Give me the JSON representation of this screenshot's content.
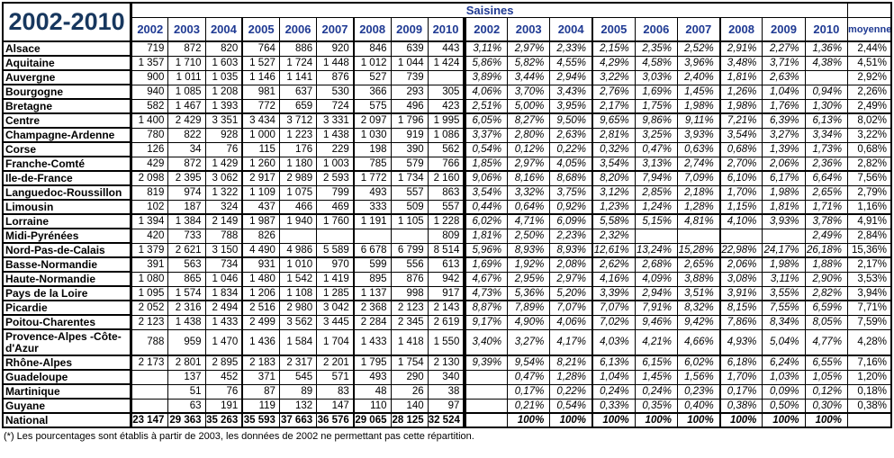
{
  "title": "2002-2010",
  "footnote": "(*) Les pourcentages sont établis à partir de 2003, les données de 2002 ne permettant pas cette répartition.",
  "colors": {
    "header_blue": "#1f3a93",
    "title_blue": "#17375e"
  },
  "table": {
    "group_header": "Saisines",
    "moyenne_label": "moyenne",
    "count_years": [
      "2002",
      "2003",
      "2004",
      "2005",
      "2006",
      "2007",
      "2008",
      "2009",
      "2010"
    ],
    "pct_years": [
      "2002",
      "2003",
      "2004",
      "2005",
      "2006",
      "2007",
      "2008",
      "2009",
      "2010"
    ],
    "rows": [
      {
        "name": "Alsace",
        "counts": [
          "719",
          "872",
          "820",
          "764",
          "886",
          "920",
          "846",
          "639",
          "443"
        ],
        "pcts": [
          "3,11%",
          "2,97%",
          "2,33%",
          "2,15%",
          "2,35%",
          "2,52%",
          "2,91%",
          "2,27%",
          "1,36%"
        ],
        "moyenne": "2,44%",
        "group_end": false,
        "bold": false,
        "tall": false
      },
      {
        "name": "Aquitaine",
        "counts": [
          "1 357",
          "1 710",
          "1 603",
          "1 527",
          "1 724",
          "1 448",
          "1 012",
          "1 044",
          "1 424"
        ],
        "pcts": [
          "5,86%",
          "5,82%",
          "4,55%",
          "4,29%",
          "4,58%",
          "3,96%",
          "3,48%",
          "3,71%",
          "4,38%"
        ],
        "moyenne": "4,51%",
        "group_end": false,
        "bold": false,
        "tall": false
      },
      {
        "name": "Auvergne",
        "counts": [
          "900",
          "1 011",
          "1 035",
          "1 146",
          "1 141",
          "876",
          "527",
          "739",
          ""
        ],
        "pcts": [
          "3,89%",
          "3,44%",
          "2,94%",
          "3,22%",
          "3,03%",
          "2,40%",
          "1,81%",
          "2,63%",
          ""
        ],
        "moyenne": "2,92%",
        "group_end": false,
        "bold": false,
        "tall": false
      },
      {
        "name": "Bourgogne",
        "counts": [
          "940",
          "1 085",
          "1 208",
          "981",
          "637",
          "530",
          "366",
          "293",
          "305"
        ],
        "pcts": [
          "4,06%",
          "3,70%",
          "3,43%",
          "2,76%",
          "1,69%",
          "1,45%",
          "1,26%",
          "1,04%",
          "0,94%"
        ],
        "moyenne": "2,26%",
        "group_end": false,
        "bold": false,
        "tall": false
      },
      {
        "name": "Bretagne",
        "counts": [
          "582",
          "1 467",
          "1 393",
          "772",
          "659",
          "724",
          "575",
          "496",
          "423"
        ],
        "pcts": [
          "2,51%",
          "5,00%",
          "3,95%",
          "2,17%",
          "1,75%",
          "1,98%",
          "1,98%",
          "1,76%",
          "1,30%"
        ],
        "moyenne": "2,49%",
        "group_end": true,
        "bold": false,
        "tall": false
      },
      {
        "name": "Centre",
        "counts": [
          "1 400",
          "2 429",
          "3 351",
          "3 434",
          "3 712",
          "3 331",
          "2 097",
          "1 796",
          "1 995"
        ],
        "pcts": [
          "6,05%",
          "8,27%",
          "9,50%",
          "9,65%",
          "9,86%",
          "9,11%",
          "7,21%",
          "6,39%",
          "6,13%"
        ],
        "moyenne": "8,02%",
        "group_end": false,
        "bold": false,
        "tall": false
      },
      {
        "name": "Champagne-Ardenne",
        "counts": [
          "780",
          "822",
          "928",
          "1 000",
          "1 223",
          "1 438",
          "1 030",
          "919",
          "1 086"
        ],
        "pcts": [
          "3,37%",
          "2,80%",
          "2,63%",
          "2,81%",
          "3,25%",
          "3,93%",
          "3,54%",
          "3,27%",
          "3,34%"
        ],
        "moyenne": "3,22%",
        "group_end": false,
        "bold": false,
        "tall": false
      },
      {
        "name": "Corse",
        "counts": [
          "126",
          "34",
          "76",
          "115",
          "176",
          "229",
          "198",
          "390",
          "562"
        ],
        "pcts": [
          "0,54%",
          "0,12%",
          "0,22%",
          "0,32%",
          "0,47%",
          "0,63%",
          "0,68%",
          "1,39%",
          "1,73%"
        ],
        "moyenne": "0,68%",
        "group_end": false,
        "bold": false,
        "tall": false
      },
      {
        "name": "Franche-Comté",
        "counts": [
          "429",
          "872",
          "1 429",
          "1 260",
          "1 180",
          "1 003",
          "785",
          "579",
          "766"
        ],
        "pcts": [
          "1,85%",
          "2,97%",
          "4,05%",
          "3,54%",
          "3,13%",
          "2,74%",
          "2,70%",
          "2,06%",
          "2,36%"
        ],
        "moyenne": "2,82%",
        "group_end": true,
        "bold": false,
        "tall": false
      },
      {
        "name": "Ile-de-France",
        "counts": [
          "2 098",
          "2 395",
          "3 062",
          "2 917",
          "2 989",
          "2 593",
          "1 772",
          "1 734",
          "2 160"
        ],
        "pcts": [
          "9,06%",
          "8,16%",
          "8,68%",
          "8,20%",
          "7,94%",
          "7,09%",
          "6,10%",
          "6,17%",
          "6,64%"
        ],
        "moyenne": "7,56%",
        "group_end": false,
        "bold": false,
        "tall": false
      },
      {
        "name": "Languedoc-Roussillon",
        "counts": [
          "819",
          "974",
          "1 322",
          "1 109",
          "1 075",
          "799",
          "493",
          "557",
          "863"
        ],
        "pcts": [
          "3,54%",
          "3,32%",
          "3,75%",
          "3,12%",
          "2,85%",
          "2,18%",
          "1,70%",
          "1,98%",
          "2,65%"
        ],
        "moyenne": "2,79%",
        "group_end": false,
        "bold": false,
        "tall": false
      },
      {
        "name": "Limousin",
        "counts": [
          "102",
          "187",
          "324",
          "437",
          "466",
          "469",
          "333",
          "509",
          "557"
        ],
        "pcts": [
          "0,44%",
          "0,64%",
          "0,92%",
          "1,23%",
          "1,24%",
          "1,28%",
          "1,15%",
          "1,81%",
          "1,71%"
        ],
        "moyenne": "1,16%",
        "group_end": true,
        "bold": false,
        "tall": false
      },
      {
        "name": "Lorraine",
        "counts": [
          "1 394",
          "1 384",
          "2 149",
          "1 987",
          "1 940",
          "1 760",
          "1 191",
          "1 105",
          "1 228"
        ],
        "pcts": [
          "6,02%",
          "4,71%",
          "6,09%",
          "5,58%",
          "5,15%",
          "4,81%",
          "4,10%",
          "3,93%",
          "3,78%"
        ],
        "moyenne": "4,91%",
        "group_end": false,
        "bold": false,
        "tall": false
      },
      {
        "name": "Midi-Pyrénées",
        "counts": [
          "420",
          "733",
          "788",
          "826",
          "",
          "",
          "",
          "",
          "809"
        ],
        "pcts": [
          "1,81%",
          "2,50%",
          "2,23%",
          "2,32%",
          "",
          "",
          "",
          "",
          "2,49%"
        ],
        "moyenne": "2,84%",
        "group_end": false,
        "bold": false,
        "tall": false
      },
      {
        "name": "Nord-Pas-de-Calais",
        "counts": [
          "1 379",
          "2 621",
          "3 150",
          "4 490",
          "4 986",
          "5 589",
          "6 678",
          "6 799",
          "8 514"
        ],
        "pcts": [
          "5,96%",
          "8,93%",
          "8,93%",
          "12,61%",
          "13,24%",
          "15,28%",
          "22,98%",
          "24,17%",
          "26,18%"
        ],
        "moyenne": "15,36%",
        "group_end": true,
        "bold": false,
        "tall": false
      },
      {
        "name": "Basse-Normandie",
        "counts": [
          "391",
          "563",
          "734",
          "931",
          "1 010",
          "970",
          "599",
          "556",
          "613"
        ],
        "pcts": [
          "1,69%",
          "1,92%",
          "2,08%",
          "2,62%",
          "2,68%",
          "2,65%",
          "2,06%",
          "1,98%",
          "1,88%"
        ],
        "moyenne": "2,17%",
        "group_end": false,
        "bold": false,
        "tall": false
      },
      {
        "name": "Haute-Normandie",
        "counts": [
          "1 080",
          "865",
          "1 046",
          "1 480",
          "1 542",
          "1 419",
          "895",
          "876",
          "942"
        ],
        "pcts": [
          "4,67%",
          "2,95%",
          "2,97%",
          "4,16%",
          "4,09%",
          "3,88%",
          "3,08%",
          "3,11%",
          "2,90%"
        ],
        "moyenne": "3,53%",
        "group_end": false,
        "bold": false,
        "tall": false
      },
      {
        "name": "Pays de la Loire",
        "counts": [
          "1 095",
          "1 574",
          "1 834",
          "1 206",
          "1 108",
          "1 285",
          "1 137",
          "998",
          "917"
        ],
        "pcts": [
          "4,73%",
          "5,36%",
          "5,20%",
          "3,39%",
          "2,94%",
          "3,51%",
          "3,91%",
          "3,55%",
          "2,82%"
        ],
        "moyenne": "3,94%",
        "group_end": true,
        "bold": false,
        "tall": false
      },
      {
        "name": "Picardie",
        "counts": [
          "2 052",
          "2 316",
          "2 494",
          "2 516",
          "2 980",
          "3 042",
          "2 368",
          "2 123",
          "2 143"
        ],
        "pcts": [
          "8,87%",
          "7,89%",
          "7,07%",
          "7,07%",
          "7,91%",
          "8,32%",
          "8,15%",
          "7,55%",
          "6,59%"
        ],
        "moyenne": "7,71%",
        "group_end": false,
        "bold": false,
        "tall": false
      },
      {
        "name": "Poitou-Charentes",
        "counts": [
          "2 123",
          "1 438",
          "1 433",
          "2 499",
          "3 562",
          "3 445",
          "2 284",
          "2 345",
          "2 619"
        ],
        "pcts": [
          "9,17%",
          "4,90%",
          "4,06%",
          "7,02%",
          "9,46%",
          "9,42%",
          "7,86%",
          "8,34%",
          "8,05%"
        ],
        "moyenne": "7,59%",
        "group_end": false,
        "bold": false,
        "tall": false
      },
      {
        "name": "Provence-Alpes -Côte-d'Azur",
        "counts": [
          "788",
          "959",
          "1 470",
          "1 436",
          "1 584",
          "1 704",
          "1 433",
          "1 418",
          "1 550"
        ],
        "pcts": [
          "3,40%",
          "3,27%",
          "4,17%",
          "4,03%",
          "4,21%",
          "4,66%",
          "4,93%",
          "5,04%",
          "4,77%"
        ],
        "moyenne": "4,28%",
        "group_end": true,
        "bold": false,
        "tall": true
      },
      {
        "name": "Rhône-Alpes",
        "counts": [
          "2 173",
          "2 801",
          "2 895",
          "2 183",
          "2 317",
          "2 201",
          "1 795",
          "1 754",
          "2 130"
        ],
        "pcts": [
          "9,39%",
          "9,54%",
          "8,21%",
          "6,13%",
          "6,15%",
          "6,02%",
          "6,18%",
          "6,24%",
          "6,55%"
        ],
        "moyenne": "7,16%",
        "group_end": false,
        "bold": false,
        "tall": false
      },
      {
        "name": "Guadeloupe",
        "counts": [
          "",
          "137",
          "452",
          "371",
          "545",
          "571",
          "493",
          "290",
          "340"
        ],
        "pcts": [
          "",
          "0,47%",
          "1,28%",
          "1,04%",
          "1,45%",
          "1,56%",
          "1,70%",
          "1,03%",
          "1,05%"
        ],
        "moyenne": "1,20%",
        "group_end": false,
        "bold": false,
        "tall": false
      },
      {
        "name": "Martinique",
        "counts": [
          "",
          "51",
          "76",
          "87",
          "89",
          "83",
          "48",
          "26",
          "38"
        ],
        "pcts": [
          "",
          "0,17%",
          "0,22%",
          "0,24%",
          "0,24%",
          "0,23%",
          "0,17%",
          "0,09%",
          "0,12%"
        ],
        "moyenne": "0,18%",
        "group_end": false,
        "bold": false,
        "tall": false
      },
      {
        "name": "Guyane",
        "counts": [
          "",
          "63",
          "191",
          "119",
          "132",
          "147",
          "110",
          "140",
          "97"
        ],
        "pcts": [
          "",
          "0,21%",
          "0,54%",
          "0,33%",
          "0,35%",
          "0,40%",
          "0,38%",
          "0,50%",
          "0,30%"
        ],
        "moyenne": "0,38%",
        "group_end": true,
        "bold": false,
        "tall": false
      },
      {
        "name": "National",
        "counts": [
          "23 147",
          "29 363",
          "35 263",
          "35 593",
          "37 663",
          "36 576",
          "29 065",
          "28 125",
          "32 524"
        ],
        "pcts": [
          "",
          "100%",
          "100%",
          "100%",
          "100%",
          "100%",
          "100%",
          "100%",
          "100%"
        ],
        "moyenne": "",
        "group_end": false,
        "bold": true,
        "tall": false
      }
    ]
  }
}
